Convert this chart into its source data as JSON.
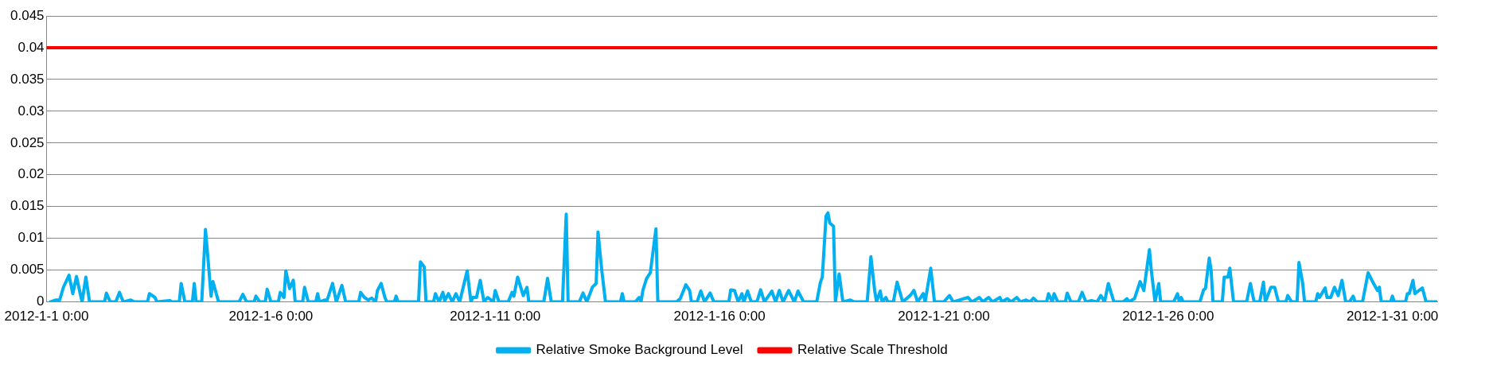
{
  "chart_data": {
    "type": "line",
    "legend": "bottom",
    "grid": "y",
    "marker": "none",
    "line_style": "solid",
    "xlim": [
      "2012-01-01T00:00",
      "2012-02-01T00:00"
    ],
    "xticks": [
      {
        "value": "2012-01-01T00:00",
        "label": "2012-1-1 0:00"
      },
      {
        "value": "2012-01-06T00:00",
        "label": "2012-1-6 0:00"
      },
      {
        "value": "2012-01-11T00:00",
        "label": "2012-1-11 0:00"
      },
      {
        "value": "2012-01-16T00:00",
        "label": "2012-1-16 0:00"
      },
      {
        "value": "2012-01-21T00:00",
        "label": "2012-1-21 0:00"
      },
      {
        "value": "2012-01-26T00:00",
        "label": "2012-1-26 0:00"
      },
      {
        "value": "2012-01-31T00:00",
        "label": "2012-1-31 0:00"
      }
    ],
    "ylim": [
      0,
      0.045
    ],
    "yticks": [
      0,
      0.005,
      0.01,
      0.015,
      0.02,
      0.025,
      0.03,
      0.035,
      0.04,
      0.045
    ],
    "series": [
      {
        "name": "Relative Smoke Background Level",
        "color": "#00b0f0",
        "x": [
          "2012-01-01T02:00",
          "2012-01-01T05:00",
          "2012-01-01T07:00",
          "2012-01-01T09:00",
          "2012-01-01T12:00",
          "2012-01-01T14:00",
          "2012-01-01T16:00",
          "2012-01-01T18:00",
          "2012-01-01T19:00",
          "2012-01-01T21:00",
          "2012-01-01T23:00",
          "2012-01-02T07:00",
          "2012-01-02T08:00",
          "2012-01-02T10:00",
          "2012-01-02T13:00",
          "2012-01-02T15:00",
          "2012-01-02T17:00",
          "2012-01-02T21:00",
          "2012-01-02T23:00",
          "2012-01-03T06:00",
          "2012-01-03T07:00",
          "2012-01-03T10:00",
          "2012-01-03T11:00",
          "2012-01-03T18:00",
          "2012-01-03T19:00",
          "2012-01-03T23:00",
          "2012-01-04T00:00",
          "2012-01-04T02:00",
          "2012-01-04T06:00",
          "2012-01-04T07:00",
          "2012-01-04T08:00",
          "2012-01-04T11:00",
          "2012-01-04T13:00",
          "2012-01-04T14:00",
          "2012-01-04T16:00",
          "2012-01-04T17:00",
          "2012-01-04T20:00",
          "2012-01-05T07:00",
          "2012-01-05T09:00",
          "2012-01-05T11:00",
          "2012-01-05T15:00",
          "2012-01-05T16:00",
          "2012-01-05T18:00",
          "2012-01-05T21:00",
          "2012-01-05T22:00",
          "2012-01-06T00:00",
          "2012-01-06T04:00",
          "2012-01-06T05:00",
          "2012-01-06T07:00",
          "2012-01-06T08:00",
          "2012-01-06T10:00",
          "2012-01-06T12:00",
          "2012-01-06T13:00",
          "2012-01-06T17:00",
          "2012-01-06T18:00",
          "2012-01-06T20:00",
          "2012-01-07T00:00",
          "2012-01-07T01:00",
          "2012-01-07T02:00",
          "2012-01-07T05:00",
          "2012-01-07T06:00",
          "2012-01-07T09:00",
          "2012-01-07T11:00",
          "2012-01-07T14:00",
          "2012-01-07T16:00",
          "2012-01-07T23:00",
          "2012-01-08T00:00",
          "2012-01-08T02:00",
          "2012-01-08T04:00",
          "2012-01-08T06:00",
          "2012-01-08T08:00",
          "2012-01-08T09:00",
          "2012-01-08T11:00",
          "2012-01-08T13:00",
          "2012-01-08T14:00",
          "2012-01-08T18:00",
          "2012-01-08T19:00",
          "2012-01-08T20:00",
          "2012-01-09T07:00",
          "2012-01-09T08:00",
          "2012-01-09T10:00",
          "2012-01-09T11:00",
          "2012-01-09T15:00",
          "2012-01-09T16:00",
          "2012-01-09T18:00",
          "2012-01-09T20:00",
          "2012-01-09T21:00",
          "2012-01-09T23:00",
          "2012-01-10T01:00",
          "2012-01-10T03:00",
          "2012-01-10T05:00",
          "2012-01-10T09:00",
          "2012-01-10T11:00",
          "2012-01-10T12:00",
          "2012-01-10T14:00",
          "2012-01-10T16:00",
          "2012-01-10T18:00",
          "2012-01-10T20:00",
          "2012-01-10T23:00",
          "2012-01-11T00:00",
          "2012-01-11T02:00",
          "2012-01-11T07:00",
          "2012-01-11T09:00",
          "2012-01-11T10:00",
          "2012-01-11T12:00",
          "2012-01-11T15:00",
          "2012-01-11T17:00",
          "2012-01-11T18:00",
          "2012-01-12T02:00",
          "2012-01-12T04:00",
          "2012-01-12T06:00",
          "2012-01-12T12:00",
          "2012-01-12T14:00",
          "2012-01-12T15:00",
          "2012-01-12T21:00",
          "2012-01-12T23:00",
          "2012-01-13T01:00",
          "2012-01-13T04:00",
          "2012-01-13T06:00",
          "2012-01-13T07:00",
          "2012-01-13T09:00",
          "2012-01-13T11:00",
          "2012-01-13T19:00",
          "2012-01-13T20:00",
          "2012-01-13T21:00",
          "2012-01-14T03:00",
          "2012-01-14T05:00",
          "2012-01-14T06:00",
          "2012-01-14T07:00",
          "2012-01-14T09:00",
          "2012-01-14T11:00",
          "2012-01-14T14:00",
          "2012-01-14T15:00",
          "2012-01-15T01:00",
          "2012-01-15T03:00",
          "2012-01-15T06:00",
          "2012-01-15T08:00",
          "2012-01-15T09:00",
          "2012-01-15T12:00",
          "2012-01-15T14:00",
          "2012-01-15T16:00",
          "2012-01-15T19:00",
          "2012-01-15T21:00",
          "2012-01-16T05:00",
          "2012-01-16T06:00",
          "2012-01-16T08:00",
          "2012-01-16T10:00",
          "2012-01-16T12:00",
          "2012-01-16T13:00",
          "2012-01-16T15:00",
          "2012-01-16T17:00",
          "2012-01-16T20:00",
          "2012-01-16T22:00",
          "2012-01-17T00:00",
          "2012-01-17T04:00",
          "2012-01-17T06:00",
          "2012-01-17T08:00",
          "2012-01-17T10:00",
          "2012-01-17T13:00",
          "2012-01-17T16:00",
          "2012-01-17T18:00",
          "2012-01-17T21:00",
          "2012-01-18T04:00",
          "2012-01-18T06:00",
          "2012-01-18T07:00",
          "2012-01-18T09:00",
          "2012-01-18T10:00",
          "2012-01-18T11:00",
          "2012-01-18T13:00",
          "2012-01-18T14:00",
          "2012-01-18T16:00",
          "2012-01-18T18:00",
          "2012-01-18T22:00",
          "2012-01-19T00:00",
          "2012-01-19T07:00",
          "2012-01-19T09:00",
          "2012-01-19T11:00",
          "2012-01-19T12:00",
          "2012-01-19T14:00",
          "2012-01-19T15:00",
          "2012-01-19T17:00",
          "2012-01-19T18:00",
          "2012-01-19T21:00",
          "2012-01-19T23:00",
          "2012-01-20T02:00",
          "2012-01-20T04:00",
          "2012-01-20T06:00",
          "2012-01-20T08:00",
          "2012-01-20T10:00",
          "2012-01-20T13:00",
          "2012-01-20T14:00",
          "2012-01-20T17:00",
          "2012-01-20T19:00",
          "2012-01-21T00:00",
          "2012-01-21T03:00",
          "2012-01-21T05:00",
          "2012-01-21T13:00",
          "2012-01-21T15:00",
          "2012-01-21T19:00",
          "2012-01-21T21:00",
          "2012-01-21T23:00",
          "2012-01-22T00:00",
          "2012-01-22T02:00",
          "2012-01-22T06:00",
          "2012-01-22T07:00",
          "2012-01-22T10:00",
          "2012-01-22T12:00",
          "2012-01-22T15:00",
          "2012-01-22T17:00",
          "2012-01-22T20:00",
          "2012-01-22T22:00",
          "2012-01-23T00:00",
          "2012-01-23T02:00",
          "2012-01-23T07:00",
          "2012-01-23T08:00",
          "2012-01-23T10:00",
          "2012-01-23T11:00",
          "2012-01-23T13:00",
          "2012-01-23T17:00",
          "2012-01-23T18:00",
          "2012-01-23T20:00",
          "2012-01-24T00:00",
          "2012-01-24T02:00",
          "2012-01-24T04:00",
          "2012-01-24T07:00",
          "2012-01-24T10:00",
          "2012-01-24T12:00",
          "2012-01-24T14:00",
          "2012-01-24T16:00",
          "2012-01-24T19:00",
          "2012-01-25T00:00",
          "2012-01-25T02:00",
          "2012-01-25T03:00",
          "2012-01-25T06:00",
          "2012-01-25T09:00",
          "2012-01-25T11:00",
          "2012-01-25T14:00",
          "2012-01-25T15:00",
          "2012-01-25T17:00",
          "2012-01-25T19:00",
          "2012-01-25T20:00",
          "2012-01-26T03:00",
          "2012-01-26T05:00",
          "2012-01-26T06:00",
          "2012-01-26T07:00",
          "2012-01-26T08:00",
          "2012-01-26T17:00",
          "2012-01-26T19:00",
          "2012-01-26T20:00",
          "2012-01-26T22:00",
          "2012-01-26T23:00",
          "2012-01-27T00:00",
          "2012-01-27T05:00",
          "2012-01-27T06:00",
          "2012-01-27T08:00",
          "2012-01-27T09:00",
          "2012-01-27T11:00",
          "2012-01-27T18:00",
          "2012-01-27T20:00",
          "2012-01-27T22:00",
          "2012-01-28T01:00",
          "2012-01-28T03:00",
          "2012-01-28T04:00",
          "2012-01-28T07:00",
          "2012-01-28T09:00",
          "2012-01-28T11:00",
          "2012-01-28T15:00",
          "2012-01-28T16:00",
          "2012-01-28T18:00",
          "2012-01-28T21:00",
          "2012-01-28T22:00",
          "2012-01-29T00:00",
          "2012-01-29T01:00",
          "2012-01-29T07:00",
          "2012-01-29T08:00",
          "2012-01-29T09:00",
          "2012-01-29T12:00",
          "2012-01-29T13:00",
          "2012-01-29T15:00",
          "2012-01-29T17:00",
          "2012-01-29T19:00",
          "2012-01-29T21:00",
          "2012-01-29T23:00",
          "2012-01-30T01:00",
          "2012-01-30T03:00",
          "2012-01-30T04:00",
          "2012-01-30T08:00",
          "2012-01-30T11:00",
          "2012-01-30T13:00",
          "2012-01-30T16:00",
          "2012-01-30T17:00",
          "2012-01-30T18:00",
          "2012-01-30T23:00",
          "2012-01-31T00:00",
          "2012-01-31T01:00",
          "2012-01-31T07:00",
          "2012-01-31T08:00",
          "2012-01-31T09:00",
          "2012-01-31T11:00",
          "2012-01-31T12:00",
          "2012-01-31T16:00",
          "2012-01-31T18:00",
          "2012-02-01T00:00"
        ],
        "values": [
          0,
          0.0003,
          0.0003,
          0.0023,
          0.0042,
          0.0013,
          0.004,
          0.0013,
          0,
          0.0039,
          0,
          0,
          0.0014,
          0,
          0,
          0.0015,
          0,
          0.0003,
          0,
          0,
          0.0013,
          0.0007,
          0,
          0.0002,
          0,
          0,
          0.0029,
          0,
          0,
          0.0029,
          0,
          0,
          0.0114,
          0.008,
          0.0009,
          0.0032,
          0,
          0,
          0.0012,
          0,
          0,
          0.0009,
          0,
          0,
          0.002,
          0,
          0,
          0.0015,
          0.0007,
          0.0049,
          0.0021,
          0.0034,
          0,
          0,
          0.0023,
          0,
          0,
          0.0013,
          0,
          0.0003,
          0.0002,
          0.0029,
          0,
          0.0026,
          0,
          0,
          0.0015,
          0.0007,
          0.0003,
          0.0006,
          0,
          0.0018,
          0.0029,
          0.0007,
          0,
          0,
          0.0009,
          0,
          0,
          0.0063,
          0.0055,
          0,
          0,
          0.0013,
          0,
          0.0015,
          0.0002,
          0.0013,
          0,
          0.0013,
          0,
          0.0049,
          0,
          0.0007,
          0.0007,
          0.0034,
          0,
          0.0007,
          0,
          0.0018,
          0,
          0,
          0.0015,
          0.0009,
          0.0039,
          0.001,
          0.0023,
          0,
          0,
          0.0037,
          0,
          0,
          0.0138,
          0,
          0,
          0.0014,
          0,
          0.0023,
          0.0029,
          0.011,
          0.005,
          0,
          0,
          0.0013,
          0,
          0,
          0.0007,
          0,
          0.0018,
          0.0037,
          0.0046,
          0.0115,
          0,
          0,
          0.0005,
          0.0027,
          0.0018,
          0,
          0,
          0.0017,
          0,
          0.0014,
          0,
          0,
          0.0019,
          0.0018,
          0,
          0.0013,
          0,
          0.0017,
          0,
          0,
          0.0019,
          0,
          0.0017,
          0,
          0.0018,
          0,
          0.0018,
          0,
          0.0017,
          0,
          0,
          0.0031,
          0.0039,
          0.0135,
          0.014,
          0.0124,
          0.0119,
          0,
          0.0044,
          0,
          0.0003,
          0,
          0,
          0.0071,
          0.0018,
          0,
          0.0017,
          0,
          0.0007,
          0,
          0,
          0.0031,
          0,
          0.0005,
          0.001,
          0.0018,
          0,
          0.0013,
          0,
          0.0053,
          0,
          0,
          0.001,
          0,
          0.0007,
          0,
          0.0007,
          0,
          0.0005,
          0.0007,
          0,
          0.0007,
          0,
          0.0005,
          0,
          0.0007,
          0,
          0.0003,
          0,
          0.0006,
          0,
          0,
          0.0013,
          0,
          0.0013,
          0,
          0,
          0.0014,
          0,
          0,
          0.0015,
          0,
          0.0002,
          0,
          0.001,
          0,
          0.0029,
          0,
          0,
          0.0005,
          0,
          0.0005,
          0.0032,
          0.0018,
          0.0082,
          0.005,
          0,
          0.0029,
          0,
          0,
          0.0013,
          0,
          0.0007,
          0,
          0,
          0.0019,
          0.0021,
          0.0069,
          0.005,
          0,
          0,
          0.0039,
          0.0039,
          0.0053,
          0,
          0,
          0.0029,
          0,
          0,
          0.0031,
          0,
          0.0023,
          0.0023,
          0,
          0,
          0.001,
          0,
          0,
          0.0062,
          0.0029,
          0,
          0,
          0.0013,
          0.0007,
          0.0022,
          0.0007,
          0.0007,
          0.0023,
          0.001,
          0.0034,
          0,
          0,
          0.0009,
          0,
          0,
          0.0046,
          0.0034,
          0.0018,
          0.0023,
          0,
          0,
          0.0009,
          0,
          0,
          0.0013,
          0.0013,
          0.0034,
          0.0013,
          0.0022,
          0,
          0
        ]
      },
      {
        "name": "Relative Scale Threshold",
        "color": "#ff0000",
        "x": [
          "2012-01-01T00:00",
          "2012-02-01T00:00"
        ],
        "values": [
          0.04,
          0.04
        ]
      }
    ]
  }
}
